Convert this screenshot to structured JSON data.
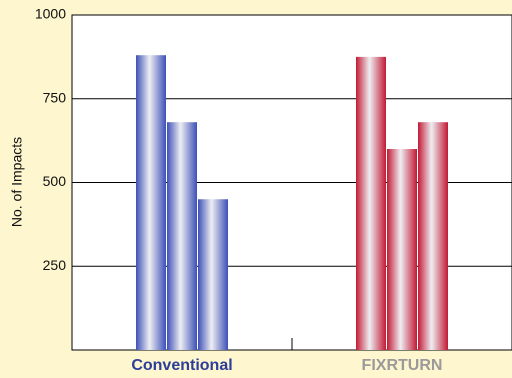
{
  "chart_data": {
    "type": "bar",
    "y_label": "No. of Impacts",
    "ylim": [
      0,
      1000
    ],
    "yticks": [
      250,
      500,
      750,
      1000
    ],
    "grid": true,
    "groups": [
      {
        "name": "Conventional",
        "color": "#3d50b8",
        "label_color": "#2c3e99",
        "values": [
          880,
          680,
          450
        ]
      },
      {
        "name": "FIXRTURN",
        "color": "#c21a35",
        "label_color": "#9a9a9a",
        "values": [
          875,
          600,
          680
        ]
      }
    ]
  }
}
